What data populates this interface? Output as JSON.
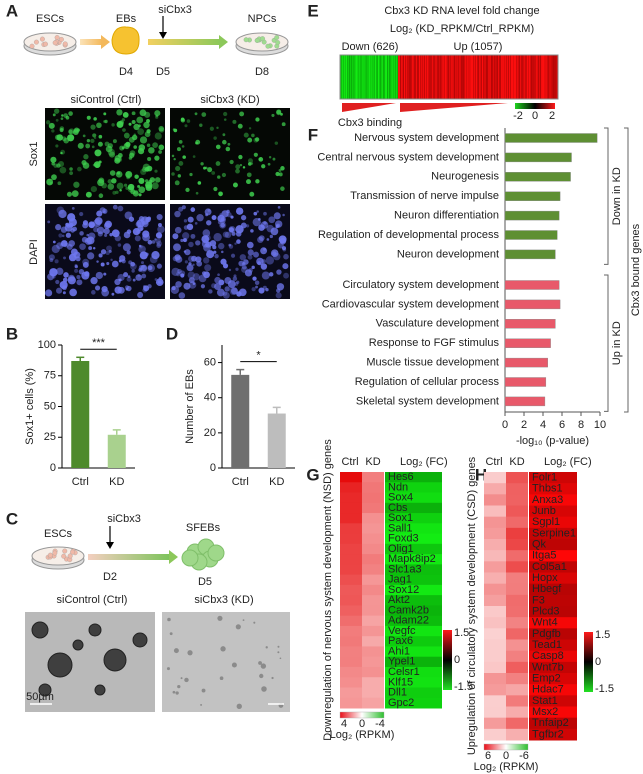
{
  "panels": {
    "A": {
      "label": "A",
      "steps": [
        "ESCs",
        "EBs",
        "NPCs"
      ],
      "days": [
        "D4",
        "D5",
        "D8"
      ],
      "treatment": "siCbx3",
      "conditions": [
        "siControl (Ctrl)",
        "siCbx3 (KD)"
      ],
      "stains": [
        "Sox1",
        "DAPI"
      ]
    },
    "C": {
      "label": "C",
      "steps": [
        "ESCs",
        "SFEBs"
      ],
      "days": [
        "D2",
        "D5"
      ],
      "treatment": "siCbx3",
      "conditions": [
        "siControl (Ctrl)",
        "siCbx3 (KD)"
      ],
      "scale_bar": "50µm"
    },
    "E": {
      "label": "E",
      "title": "Cbx3 KD RNA level fold change",
      "subtitle": "Log₂ (KD_RPKM/Ctrl_RPKM)",
      "groups": [
        "Down (626)",
        "Up (1057)"
      ],
      "colorbar": [
        "-2",
        "0",
        "2"
      ],
      "annotation": "Cbx3 binding"
    },
    "G": {
      "label": "G",
      "columns": [
        "Ctrl",
        "KD",
        "Log₂ (FC)"
      ],
      "ylabel": "Downregulation of nervous system development (NSD) genes",
      "genes": [
        "Hes6",
        "Ndn",
        "Sox4",
        "Cbs",
        "Sox1",
        "Sall1",
        "Foxd3",
        "Olig1",
        "Mapk8ip2",
        "Slc1a3",
        "Jag1",
        "Sox12",
        "Akt2",
        "Camk2b",
        "Adam22",
        "Vegfc",
        "Pax6",
        "Ahi1",
        "Ypel1",
        "Celsr1",
        "Klf15",
        "Dll1",
        "Gpc2"
      ],
      "fc_colorbar": [
        "1.5",
        "0",
        "-1.5"
      ],
      "rpkm_colorbar": [
        "4",
        "0",
        "-4"
      ],
      "rpkm_label": "Log₂ (RPKM)"
    },
    "H": {
      "label": "H",
      "columns": [
        "Ctrl",
        "KD",
        "Log₂ (FC)"
      ],
      "ylabel": "Upregulation of circulatory system development (CSD) genes",
      "genes": [
        "Folr1",
        "Thbs1",
        "Anxa3",
        "Junb",
        "Sgpl1",
        "Serpine1",
        "Qk",
        "Itga5",
        "Col5a1",
        "Hopx",
        "Hbegf",
        "F3",
        "Plcd3",
        "Wnt4",
        "Pdgfb",
        "Tead1",
        "Casp8",
        "Wnt7b",
        "Emp2",
        "Hdac7",
        "Stat1",
        "Msx2",
        "Tnfaip2",
        "Tgfbr2"
      ],
      "fc_colorbar": [
        "1.5",
        "0",
        "-1.5"
      ],
      "rpkm_colorbar": [
        "6",
        "0",
        "-6"
      ],
      "rpkm_label": "Log₂ (RPKM)"
    }
  },
  "chart_data": [
    {
      "type": "bar",
      "label": "B",
      "ylabel": "Sox1+ cells (%)",
      "categories": [
        "Ctrl",
        "KD"
      ],
      "values": [
        87,
        27
      ],
      "errors": [
        3,
        4
      ],
      "colors": [
        "#4e8a2c",
        "#a9d18e"
      ],
      "ylim": [
        0,
        100
      ],
      "yticks": [
        0,
        25,
        50,
        75,
        100
      ],
      "significance": "***"
    },
    {
      "type": "bar",
      "label": "D",
      "ylabel": "Number of EBs",
      "categories": [
        "Ctrl",
        "KD"
      ],
      "values": [
        53,
        31
      ],
      "errors": [
        3,
        3.5
      ],
      "colors": [
        "#6f6f6f",
        "#bdbdbd"
      ],
      "ylim": [
        0,
        70
      ],
      "yticks": [
        0,
        20,
        40,
        60
      ],
      "significance": "*"
    },
    {
      "type": "hbar",
      "label": "F",
      "xlabel": "-log₁₀ (p-value)",
      "bracket_label": "Cbx3 bound genes",
      "xlim": [
        0,
        10
      ],
      "xticks": [
        0,
        2,
        4,
        6,
        8,
        10
      ],
      "series": [
        {
          "name": "Down in KD",
          "color": "#5e8f33",
          "categories": [
            "Nervous system development",
            "Central nervous system development",
            "Neurogenesis",
            "Transmission of nerve impulse",
            "Neuron differentiation",
            "Regulation of developmental process",
            "Neuron development"
          ],
          "values": [
            9.7,
            7.0,
            6.9,
            5.8,
            5.7,
            5.5,
            5.3
          ]
        },
        {
          "name": "Up in KD",
          "color": "#e8596a",
          "categories": [
            "Circulatory system development",
            "Cardiovascular system development",
            "Vasculature development",
            "Response to FGF stimulus",
            "Muscle tissue development",
            "Regulation of cellular process",
            "Skeletal system development"
          ],
          "values": [
            5.7,
            5.8,
            5.3,
            4.8,
            4.5,
            4.3,
            4.2
          ]
        }
      ]
    }
  ]
}
